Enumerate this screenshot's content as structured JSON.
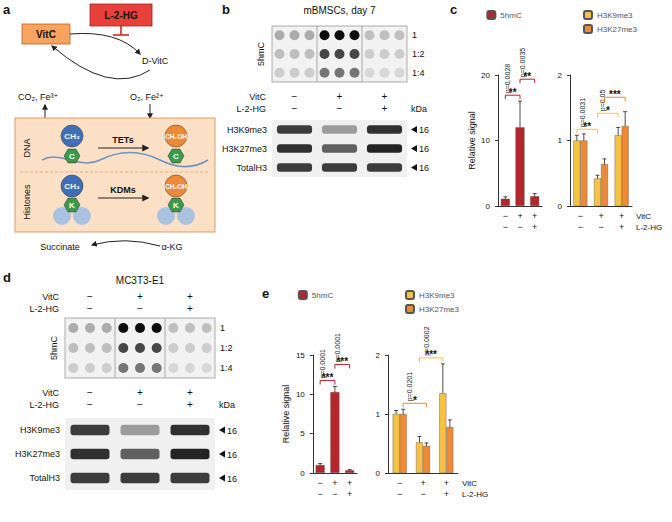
{
  "figure": {
    "panel_labels": [
      "a",
      "b",
      "c",
      "d",
      "e"
    ],
    "a": {
      "vitc": "VitC",
      "inhibitor": "L-2-HG",
      "product": "D-VitC",
      "left_cofactors": "CO₂, Fe³⁺",
      "right_cofactors": "O₂, Fe²⁺",
      "dna": "DNA",
      "histones": "Histones",
      "tets": "TETs",
      "kdms": "KDMs",
      "methyl": "CH₃",
      "hydroxymethyl": "CH₂OH",
      "cytosine": "C",
      "lysine": "K",
      "succinate": "Succinate",
      "akg": "α-KG"
    },
    "b": {
      "title": "mBMSCs, day 7",
      "dot_label": "5hmC",
      "dilutions": [
        "1",
        "1:2",
        "1:4"
      ],
      "blot_conditions": [
        {
          "label": "VitC",
          "signs": [
            "−",
            "+",
            "+"
          ]
        },
        {
          "label": "L-2-HG",
          "signs": [
            "−",
            "−",
            "+"
          ]
        }
      ],
      "bands": [
        "H3K9me3",
        "H3K27me3",
        "TotalH3"
      ],
      "kda_label": "kDa",
      "kda": [
        16,
        16,
        16
      ]
    },
    "d": {
      "title": "MC3T3-E1",
      "dot_label": "5hmC",
      "dilutions": [
        "1",
        "1:2",
        "1:4"
      ],
      "dot_conditions": [
        {
          "label": "VitC",
          "signs": [
            "−",
            "+",
            "+"
          ]
        },
        {
          "label": "L-2-HG",
          "signs": [
            "−",
            "−",
            "+"
          ]
        }
      ],
      "blot_conditions": [
        {
          "label": "VitC",
          "signs": [
            "−",
            "+",
            "+"
          ]
        },
        {
          "label": "L-2-HG",
          "signs": [
            "−",
            "−",
            "+"
          ]
        }
      ],
      "bands": [
        "H3K9me3",
        "H3K27me3",
        "TotalH3"
      ],
      "kda_label": "kDa",
      "kda": [
        16,
        16,
        16
      ]
    }
  },
  "chart_data": [
    {
      "type": "bar",
      "ylabel": "Relative signal",
      "categories": [
        null,
        null,
        null
      ],
      "series": [
        {
          "name": "5hmC",
          "color": "#b3262b",
          "values": [
            1.1,
            12.0,
            1.5
          ],
          "errors": [
            0.3,
            4.0,
            0.4
          ]
        }
      ],
      "ylim": [
        0,
        20
      ],
      "yticks": [
        0,
        10,
        20
      ],
      "grid": false,
      "legend": "top",
      "tick_labels": "y",
      "brackets": [
        {
          "series": 0,
          "from": 0,
          "to": 1,
          "text": "**",
          "p": "p=0.0028"
        },
        {
          "series": 0,
          "from": 1,
          "to": 2,
          "text": "**",
          "p": "p=0.0035"
        }
      ],
      "x_table": {
        "rows": [
          [
            "−",
            "+",
            "+"
          ],
          [
            "−",
            "−",
            "+"
          ]
        ]
      }
    },
    {
      "type": "bar",
      "categories": [
        null,
        null,
        null
      ],
      "series": [
        {
          "name": "H3K9me3",
          "color": "#f6c244",
          "values": [
            1.0,
            0.42,
            1.08
          ],
          "errors": [
            0.08,
            0.05,
            0.12
          ]
        },
        {
          "name": "H3K27me3",
          "color": "#ee8a35",
          "values": [
            1.0,
            0.64,
            1.22
          ],
          "errors": [
            0.1,
            0.08,
            0.22
          ]
        }
      ],
      "ylim": [
        0,
        2
      ],
      "yticks": [
        0,
        1,
        2
      ],
      "grid": false,
      "legend": "top",
      "tick_labels": "y",
      "brackets": [
        {
          "series": 0,
          "from": 0,
          "to": 1,
          "text": "**",
          "p": "p=0.0031"
        },
        {
          "series": 0,
          "from": 1,
          "to": 2,
          "text": "*",
          "p": "p=0.05"
        },
        {
          "series": 1,
          "from": 1,
          "to": 2,
          "text": "***"
        }
      ],
      "x_table": {
        "labels": [
          "VitC",
          "L-2-HG"
        ],
        "rows": [
          [
            "−",
            "+",
            "+"
          ],
          [
            "−",
            "−",
            "+"
          ]
        ]
      }
    },
    {
      "type": "bar",
      "ylabel": "Relative signal",
      "categories": [
        null,
        null,
        null
      ],
      "series": [
        {
          "name": "5hmC",
          "color": "#b3262b",
          "values": [
            1.0,
            10.3,
            0.35
          ],
          "errors": [
            0.2,
            0.7,
            0.1
          ]
        }
      ],
      "ylim": [
        0,
        15
      ],
      "yticks": [
        0,
        5,
        10,
        15
      ],
      "grid": false,
      "legend": "top",
      "tick_labels": "y",
      "brackets": [
        {
          "series": 0,
          "from": 0,
          "to": 1,
          "text": "***",
          "p": "p=0.0001"
        },
        {
          "series": 0,
          "from": 1,
          "to": 2,
          "text": "***",
          "p": "p=0.0001"
        }
      ],
      "x_table": {
        "rows": [
          [
            "−",
            "+",
            "+"
          ],
          [
            "−",
            "−",
            "+"
          ]
        ]
      }
    },
    {
      "type": "bar",
      "categories": [
        null,
        null,
        null
      ],
      "series": [
        {
          "name": "H3K9me3",
          "color": "#f6c244",
          "values": [
            1.0,
            0.52,
            1.35
          ],
          "errors": [
            0.06,
            0.1,
            0.5
          ]
        },
        {
          "name": "H3K27me3",
          "color": "#ee8a35",
          "values": [
            1.0,
            0.46,
            0.78
          ],
          "errors": [
            0.08,
            0.05,
            0.12
          ]
        }
      ],
      "ylim": [
        0,
        2
      ],
      "yticks": [
        0,
        1,
        2
      ],
      "grid": false,
      "legend": "top",
      "tick_labels": "y",
      "brackets": [
        {
          "series": 1,
          "from": 0,
          "to": 1,
          "text": "*",
          "p": "p=0.0201"
        },
        {
          "series": 0,
          "from": 1,
          "to": 2,
          "text": "***",
          "p": "p=0.0002"
        }
      ],
      "x_table": {
        "labels": [
          "VitC",
          "L-2-HG"
        ],
        "rows": [
          [
            "−",
            "+",
            "+"
          ],
          [
            "−",
            "−",
            "+"
          ]
        ]
      }
    }
  ]
}
